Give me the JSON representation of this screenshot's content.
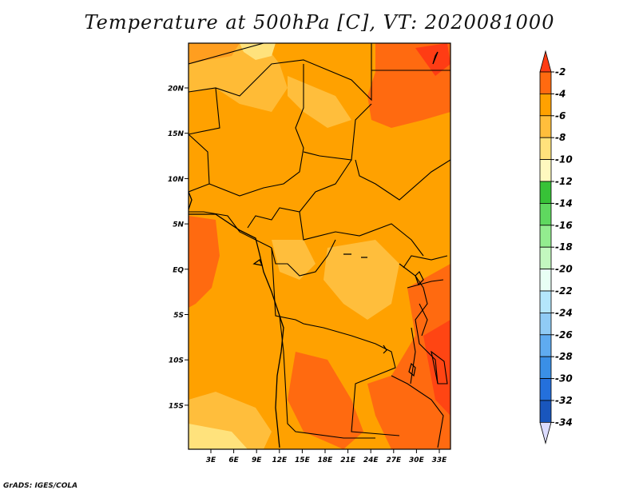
{
  "title": "Temperature at 500hPa [C], VT: 2020081000",
  "credit": "GrADS: IGES/COLA",
  "map": {
    "lat_ticks": [
      "20N",
      "15N",
      "10N",
      "5N",
      "EQ",
      "5S",
      "10S",
      "15S"
    ],
    "lon_ticks": [
      "3E",
      "6E",
      "9E",
      "12E",
      "15E",
      "18E",
      "21E",
      "24E",
      "27E",
      "30E",
      "33E"
    ]
  },
  "colorbar": {
    "labels": [
      "-2",
      "-4",
      "-6",
      "-8",
      "-10",
      "-12",
      "-14",
      "-16",
      "-18",
      "-20",
      "-22",
      "-24",
      "-26",
      "-28",
      "-30",
      "-32",
      "-34"
    ],
    "colors": [
      "#ff6a10",
      "#ffa100",
      "#ffbe3c",
      "#ffe27c",
      "#fff9bf",
      "#37c237",
      "#5fd85f",
      "#93ec8f",
      "#c3f8bf",
      "#e8fff5",
      "#b4e6fb",
      "#90cbf5",
      "#5fabf0",
      "#3a8fe6",
      "#2470dc",
      "#1956bd",
      "#0f35a0"
    ],
    "top_color": "#ff3c14",
    "bottom_color": "#dcdcff"
  }
}
